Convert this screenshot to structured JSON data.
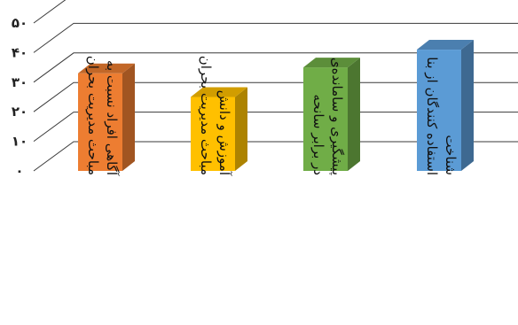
{
  "chart_data": {
    "type": "bar",
    "title": "",
    "xlabel": "",
    "ylabel": "",
    "ylim": [
      0,
      50
    ],
    "yticks": [
      "۰",
      "۱۰",
      "۲۰",
      "۳۰",
      "۴۰",
      "۵۰"
    ],
    "grid": true,
    "legend": "none",
    "categories": [
      [
        "آگاهی افراد نسبت به",
        "مباحث مدیریت بحران"
      ],
      [
        "آموزش و دانش",
        "مباحث مدیریت بحران"
      ],
      [
        "پیشگیری و سامانده‌ی",
        "در برابر سانحه"
      ],
      [
        "شناخت",
        "استفاده کنندگان از بنا"
      ]
    ],
    "values": [
      33,
      25,
      35,
      41
    ],
    "colors": [
      "#ED7D31",
      "#FFC000",
      "#70AD47",
      "#5B9BD5"
    ]
  }
}
